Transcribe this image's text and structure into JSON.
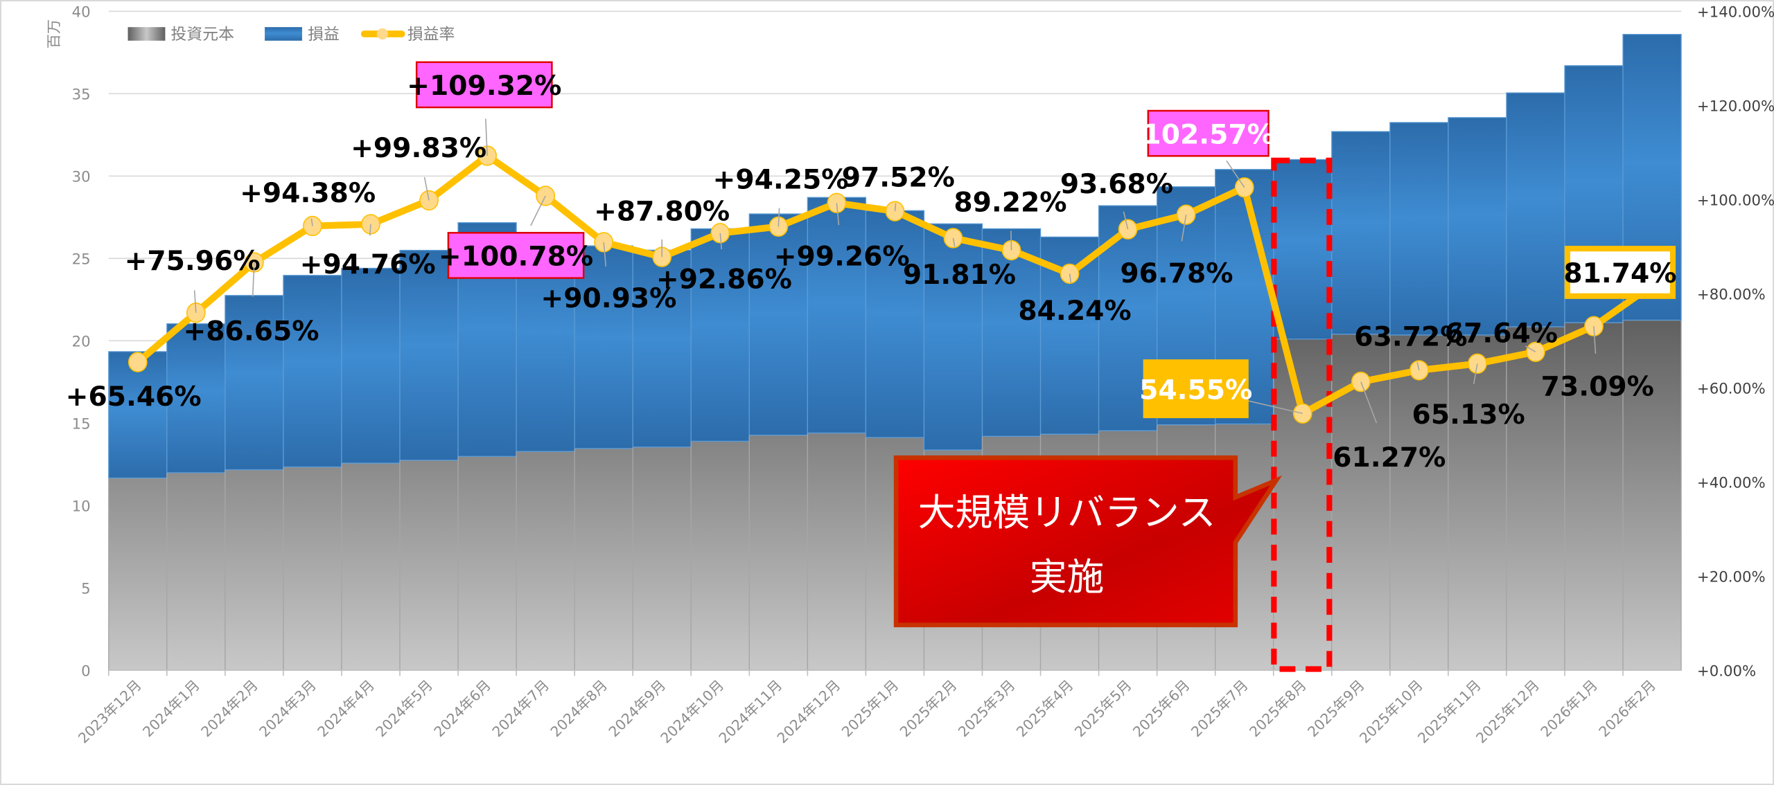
{
  "chart_data": {
    "type": "bar",
    "stacked": true,
    "title": "",
    "y_unit_label": "百万",
    "ylim": [
      0,
      40
    ],
    "y_ticks": [
      "0",
      "5",
      "10",
      "15",
      "20",
      "25",
      "30",
      "35",
      "40"
    ],
    "y2lim": [
      0,
      140
    ],
    "y2_ticks": [
      "+0.00%",
      "+20.00%",
      "+40.00%",
      "+60.00%",
      "+80.00%",
      "+100.00%",
      "+120.00%",
      "+140.00%"
    ],
    "grid": true,
    "legend_placement": "top-left",
    "categories": [
      "2023年12月",
      "2024年1月",
      "2024年2月",
      "2024年3月",
      "2024年4月",
      "2024年5月",
      "2024年6月",
      "2024年7月",
      "2024年8月",
      "2024年9月",
      "2024年10月",
      "2024年11月",
      "2024年12月",
      "2025年1月",
      "2025年2月",
      "2025年3月",
      "2025年4月",
      "2025年5月",
      "2025年6月",
      "2025年7月",
      "2025年8月",
      "2025年9月",
      "2025年10月",
      "2025年11月",
      "2025年12月",
      "2026年1月",
      "2026年2月"
    ],
    "series": [
      {
        "name": "投資元本",
        "type": "bar",
        "axis": "left",
        "color": "#7f7f7f",
        "values": [
          11.67,
          11.99,
          12.17,
          12.34,
          12.57,
          12.75,
          12.98,
          13.28,
          13.46,
          13.55,
          13.9,
          14.27,
          14.4,
          14.13,
          13.37,
          14.2,
          14.33,
          14.54,
          14.9,
          14.95,
          20.1,
          20.4,
          20.35,
          20.35,
          20.85,
          21.1,
          21.25
        ]
      },
      {
        "name": "損益",
        "type": "bar",
        "axis": "left",
        "color": "#3a83c8",
        "values": [
          7.67,
          9.04,
          10.58,
          11.63,
          11.83,
          12.74,
          14.19,
          13.3,
          12.3,
          11.95,
          12.9,
          13.43,
          14.3,
          13.77,
          13.73,
          12.6,
          11.97,
          13.66,
          14.45,
          15.45,
          10.9,
          12.3,
          12.9,
          13.2,
          14.2,
          15.6,
          17.35
        ]
      },
      {
        "name": "損益率",
        "type": "line",
        "axis": "right",
        "color": "#ffc000",
        "values": [
          65.46,
          75.96,
          86.65,
          94.38,
          94.76,
          99.83,
          109.32,
          100.78,
          90.93,
          87.8,
          92.86,
          94.25,
          99.26,
          97.52,
          91.81,
          89.22,
          84.24,
          93.68,
          96.78,
          102.57,
          54.55,
          61.27,
          63.72,
          65.13,
          67.64,
          73.09,
          81.74
        ],
        "data_labels": [
          "+65.46%",
          "+75.96%",
          "+86.65%",
          "+94.38%",
          "+94.76%",
          "+99.83%",
          "+109.32%",
          "+100.78%",
          "+90.93%",
          "+87.80%",
          "+92.86%",
          "+94.25%",
          "+99.26%",
          "97.52%",
          "91.81%",
          "89.22%",
          "84.24%",
          "93.68%",
          "96.78%",
          "102.57%",
          "54.55%",
          "61.27%",
          "63.72%",
          "65.13%",
          "67.64%",
          "73.09%",
          "81.74%"
        ]
      }
    ],
    "annotations": {
      "callout_line1": "大規模リバランス",
      "callout_line2": "実施",
      "highlight_category": "2025年8月"
    }
  },
  "colors": {
    "principal": "#7f7f7f",
    "profit": "#3a83c8",
    "rate": "#ffc000",
    "callout": "#e00000",
    "highlight_pink": "#ff66ff"
  }
}
